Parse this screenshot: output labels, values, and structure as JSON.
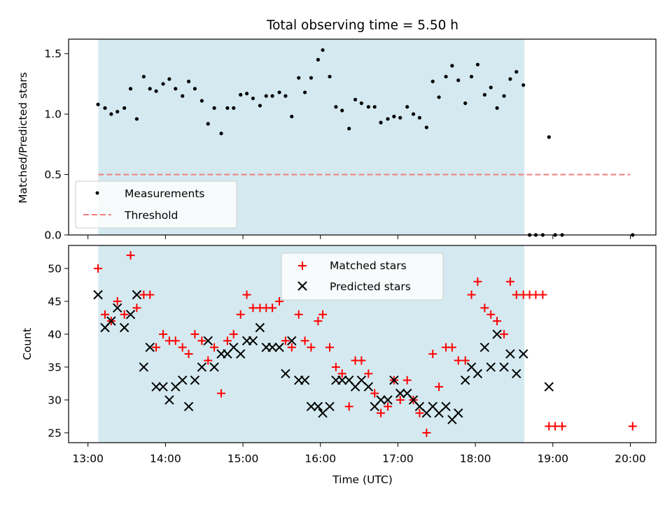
{
  "chart_data": {
    "type": "scatter",
    "title": "Total observing time = 5.50 h",
    "xlabel": "Time (UTC)",
    "x_ticks": [
      "13:00",
      "14:00",
      "15:00",
      "16:00",
      "17:00",
      "18:00",
      "19:00",
      "20:00"
    ],
    "xlim_hours": [
      12.75,
      20.33
    ],
    "shaded_span_hours": [
      13.133,
      18.633
    ],
    "shade_color": "#d4eaf0",
    "panels": [
      {
        "ylabel": "Matched/Predicted stars",
        "ylim": [
          0,
          1.62
        ],
        "y_ticks": [
          "0.0",
          "0.5",
          "1.0",
          "1.5"
        ],
        "y_tick_values": [
          0,
          0.5,
          1.0,
          1.5
        ],
        "legend": {
          "placement": "lower-left",
          "entries": [
            "Measurements",
            "Threshold"
          ]
        },
        "threshold": {
          "name": "Threshold",
          "y": 0.5,
          "x_range_hours": [
            13.133,
            20.0
          ],
          "color": "#f08080"
        },
        "series": [
          {
            "name": "Measurements",
            "marker": "dot",
            "color": "#000000",
            "x": [
              13.13,
              13.22,
              13.3,
              13.38,
              13.47,
              13.55,
              13.63,
              13.72,
              13.8,
              13.88,
              13.97,
              14.05,
              14.13,
              14.22,
              14.3,
              14.38,
              14.47,
              14.55,
              14.63,
              14.72,
              14.8,
              14.88,
              14.97,
              15.05,
              15.13,
              15.22,
              15.3,
              15.38,
              15.47,
              15.55,
              15.63,
              15.72,
              15.8,
              15.88,
              15.97,
              16.03,
              16.12,
              16.2,
              16.28,
              16.37,
              16.45,
              16.53,
              16.62,
              16.7,
              16.78,
              16.87,
              16.95,
              17.03,
              17.12,
              17.2,
              17.28,
              17.37,
              17.45,
              17.53,
              17.62,
              17.7,
              17.78,
              17.87,
              17.95,
              18.03,
              18.12,
              18.2,
              18.28,
              18.37,
              18.45,
              18.53,
              18.62,
              18.7,
              18.78,
              18.87,
              18.95,
              19.03,
              19.12,
              20.03
            ],
            "y": [
              1.08,
              1.05,
              1.0,
              1.02,
              1.05,
              1.21,
              0.96,
              1.31,
              1.21,
              1.19,
              1.25,
              1.29,
              1.21,
              1.15,
              1.27,
              1.21,
              1.11,
              0.92,
              1.05,
              0.84,
              1.05,
              1.05,
              1.16,
              1.17,
              1.13,
              1.07,
              1.15,
              1.15,
              1.18,
              1.15,
              0.98,
              1.3,
              1.18,
              1.3,
              1.45,
              1.53,
              1.31,
              1.06,
              1.03,
              0.88,
              1.12,
              1.09,
              1.06,
              1.06,
              0.93,
              0.96,
              0.98,
              0.97,
              1.06,
              1.0,
              0.97,
              0.89,
              1.27,
              1.14,
              1.31,
              1.4,
              1.28,
              1.09,
              1.31,
              1.41,
              1.16,
              1.22,
              1.05,
              1.15,
              1.29,
              1.35,
              1.24,
              0.0,
              0.0,
              0.0,
              0.81,
              0.0,
              0.0,
              0.0
            ]
          }
        ]
      },
      {
        "ylabel": "Count",
        "ylim": [
          23.5,
          53.5
        ],
        "y_ticks": [
          "25",
          "30",
          "35",
          "40",
          "45",
          "50"
        ],
        "y_tick_values": [
          25,
          30,
          35,
          40,
          45,
          50
        ],
        "legend": {
          "placement": "upper-center",
          "entries": [
            "Matched stars",
            "Predicted stars"
          ]
        },
        "series": [
          {
            "name": "Matched stars",
            "marker": "plus",
            "color": "#ff0000",
            "x": [
              13.13,
              13.22,
              13.3,
              13.38,
              13.47,
              13.55,
              13.63,
              13.72,
              13.8,
              13.88,
              13.97,
              14.05,
              14.13,
              14.22,
              14.3,
              14.38,
              14.47,
              14.55,
              14.63,
              14.72,
              14.8,
              14.88,
              14.97,
              15.05,
              15.13,
              15.22,
              15.3,
              15.38,
              15.47,
              15.55,
              15.63,
              15.72,
              15.8,
              15.88,
              15.97,
              16.03,
              16.12,
              16.2,
              16.28,
              16.37,
              16.45,
              16.53,
              16.62,
              16.7,
              16.78,
              16.87,
              16.95,
              17.03,
              17.12,
              17.2,
              17.28,
              17.37,
              17.45,
              17.53,
              17.62,
              17.7,
              17.78,
              17.87,
              17.95,
              18.03,
              18.12,
              18.2,
              18.28,
              18.37,
              18.45,
              18.53,
              18.62,
              18.7,
              18.78,
              18.87,
              18.95,
              19.03,
              19.12,
              20.03
            ],
            "y": [
              50,
              43,
              42,
              45,
              43,
              52,
              44,
              46,
              46,
              38,
              40,
              39,
              39,
              38,
              37,
              40,
              39,
              36,
              38,
              31,
              39,
              40,
              43,
              46,
              44,
              44,
              44,
              44,
              45,
              39,
              38,
              43,
              39,
              38,
              42,
              43,
              38,
              35,
              34,
              29,
              36,
              36,
              34,
              31,
              28,
              29,
              33,
              30,
              33,
              30,
              28,
              25,
              37,
              32,
              38,
              38,
              36,
              36,
              46,
              48,
              44,
              43,
              42,
              40,
              48,
              46,
              46,
              46,
              46,
              46,
              26,
              26,
              26,
              26
            ]
          },
          {
            "name": "Predicted stars",
            "marker": "cross",
            "color": "#000000",
            "x": [
              13.13,
              13.22,
              13.3,
              13.38,
              13.47,
              13.55,
              13.63,
              13.72,
              13.8,
              13.88,
              13.97,
              14.05,
              14.13,
              14.22,
              14.3,
              14.38,
              14.47,
              14.55,
              14.63,
              14.72,
              14.8,
              14.88,
              14.97,
              15.05,
              15.13,
              15.22,
              15.3,
              15.38,
              15.47,
              15.55,
              15.63,
              15.72,
              15.8,
              15.88,
              15.97,
              16.03,
              16.12,
              16.2,
              16.28,
              16.37,
              16.45,
              16.53,
              16.62,
              16.7,
              16.78,
              16.87,
              16.95,
              17.03,
              17.12,
              17.2,
              17.28,
              17.37,
              17.45,
              17.53,
              17.62,
              17.7,
              17.78,
              17.87,
              17.95,
              18.03,
              18.12,
              18.2,
              18.28,
              18.37,
              18.45,
              18.53,
              18.62,
              18.95
            ],
            "y": [
              46,
              41,
              42,
              44,
              41,
              43,
              46,
              35,
              38,
              32,
              32,
              30,
              32,
              33,
              29,
              33,
              35,
              39,
              35,
              37,
              37,
              38,
              37,
              39,
              39,
              41,
              38,
              38,
              38,
              34,
              39,
              33,
              33,
              29,
              29,
              28,
              29,
              33,
              33,
              33,
              32,
              33,
              32,
              29,
              30,
              30,
              33,
              31,
              31,
              30,
              29,
              28,
              29,
              28,
              29,
              27,
              28,
              33,
              35,
              34,
              38,
              35,
              40,
              35,
              37,
              34,
              37,
              32
            ]
          }
        ]
      }
    ]
  }
}
